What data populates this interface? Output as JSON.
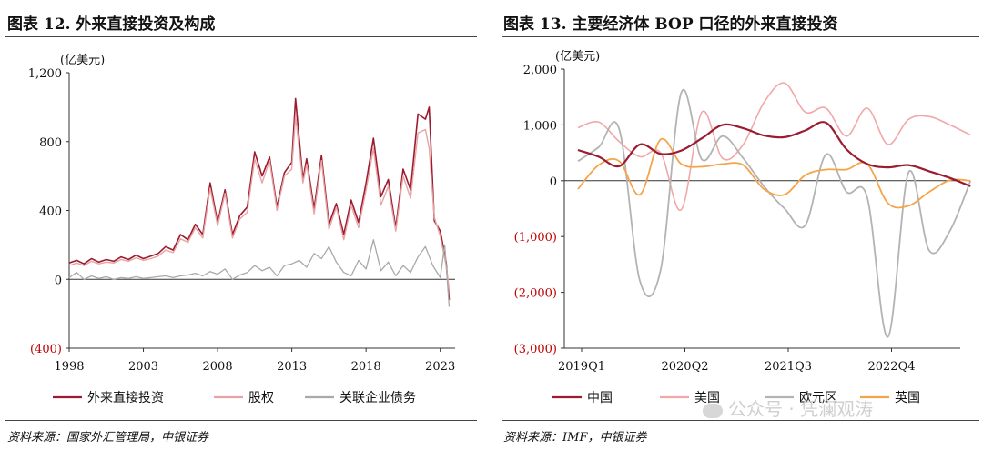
{
  "chart_data": [
    {
      "type": "line",
      "title": "图表 12. 外来直接投资及构成",
      "ylabel": "(亿美元)",
      "xlabel": "",
      "ylim": [
        -400,
        1200
      ],
      "yticks": [
        -400,
        0,
        400,
        800,
        1200
      ],
      "ytick_labels": [
        "(400)",
        "0",
        "400",
        "800",
        "1,200"
      ],
      "xlim": [
        1998,
        2024
      ],
      "xticks": [
        1998,
        2003,
        2008,
        2013,
        2018,
        2023
      ],
      "xtick_labels": [
        "1998",
        "2003",
        "2008",
        "2013",
        "2018",
        "2023"
      ],
      "legend_position": "bottom",
      "source": "资料来源：国家外汇管理局，中银证券",
      "series": [
        {
          "name": "外来直接投资",
          "color": "#9b1b30",
          "width": 1.6,
          "points": [
            [
              1998,
              95
            ],
            [
              1998.5,
              110
            ],
            [
              1999,
              90
            ],
            [
              1999.5,
              120
            ],
            [
              2000,
              100
            ],
            [
              2000.5,
              115
            ],
            [
              2001,
              105
            ],
            [
              2001.5,
              130
            ],
            [
              2002,
              115
            ],
            [
              2002.5,
              140
            ],
            [
              2003,
              120
            ],
            [
              2003.5,
              135
            ],
            [
              2004,
              150
            ],
            [
              2004.5,
              190
            ],
            [
              2005,
              170
            ],
            [
              2005.5,
              260
            ],
            [
              2006,
              230
            ],
            [
              2006.5,
              320
            ],
            [
              2007,
              260
            ],
            [
              2007.5,
              560
            ],
            [
              2008,
              330
            ],
            [
              2008.5,
              520
            ],
            [
              2009,
              260
            ],
            [
              2009.5,
              370
            ],
            [
              2010,
              420
            ],
            [
              2010.5,
              740
            ],
            [
              2011,
              600
            ],
            [
              2011.5,
              710
            ],
            [
              2012,
              420
            ],
            [
              2012.5,
              620
            ],
            [
              2013,
              680
            ],
            [
              2013.25,
              1050
            ],
            [
              2013.75,
              580
            ],
            [
              2014,
              700
            ],
            [
              2014.5,
              410
            ],
            [
              2015,
              720
            ],
            [
              2015.5,
              320
            ],
            [
              2016,
              440
            ],
            [
              2016.5,
              260
            ],
            [
              2017,
              460
            ],
            [
              2017.5,
              330
            ],
            [
              2018,
              560
            ],
            [
              2018.5,
              820
            ],
            [
              2019,
              480
            ],
            [
              2019.5,
              580
            ],
            [
              2020,
              300
            ],
            [
              2020.5,
              640
            ],
            [
              2021,
              520
            ],
            [
              2021.5,
              960
            ],
            [
              2022,
              930
            ],
            [
              2022.25,
              1000
            ],
            [
              2022.6,
              340
            ],
            [
              2023,
              280
            ],
            [
              2023.4,
              100
            ],
            [
              2023.6,
              -120
            ]
          ]
        },
        {
          "name": "股权",
          "color": "#e8a3a3",
          "width": 1.4,
          "points": [
            [
              1998,
              80
            ],
            [
              1998.5,
              95
            ],
            [
              1999,
              80
            ],
            [
              1999.5,
              105
            ],
            [
              2000,
              90
            ],
            [
              2000.5,
              100
            ],
            [
              2001,
              95
            ],
            [
              2001.5,
              115
            ],
            [
              2002,
              105
            ],
            [
              2002.5,
              125
            ],
            [
              2003,
              110
            ],
            [
              2003.5,
              120
            ],
            [
              2004,
              135
            ],
            [
              2004.5,
              170
            ],
            [
              2005,
              155
            ],
            [
              2005.5,
              235
            ],
            [
              2006,
              215
            ],
            [
              2006.5,
              300
            ],
            [
              2007,
              240
            ],
            [
              2007.5,
              530
            ],
            [
              2008,
              310
            ],
            [
              2008.5,
              500
            ],
            [
              2009,
              240
            ],
            [
              2009.5,
              350
            ],
            [
              2010,
              390
            ],
            [
              2010.5,
              700
            ],
            [
              2011,
              560
            ],
            [
              2011.5,
              690
            ],
            [
              2012,
              400
            ],
            [
              2012.5,
              600
            ],
            [
              2013,
              640
            ],
            [
              2013.25,
              950
            ],
            [
              2013.75,
              560
            ],
            [
              2014,
              670
            ],
            [
              2014.5,
              380
            ],
            [
              2015,
              690
            ],
            [
              2015.5,
              290
            ],
            [
              2016,
              420
            ],
            [
              2016.5,
              230
            ],
            [
              2017,
              430
            ],
            [
              2017.5,
              300
            ],
            [
              2018,
              520
            ],
            [
              2018.5,
              760
            ],
            [
              2019,
              430
            ],
            [
              2019.5,
              540
            ],
            [
              2020,
              280
            ],
            [
              2020.5,
              600
            ],
            [
              2021,
              470
            ],
            [
              2021.5,
              850
            ],
            [
              2022,
              870
            ],
            [
              2022.25,
              760
            ],
            [
              2022.6,
              360
            ],
            [
              2023,
              250
            ],
            [
              2023.4,
              80
            ],
            [
              2023.6,
              -60
            ]
          ]
        },
        {
          "name": "关联企业债务",
          "color": "#a9a9a9",
          "width": 1.3,
          "points": [
            [
              1998,
              10
            ],
            [
              1998.5,
              40
            ],
            [
              1999,
              0
            ],
            [
              1999.5,
              20
            ],
            [
              2000,
              5
            ],
            [
              2000.5,
              15
            ],
            [
              2001,
              0
            ],
            [
              2001.5,
              10
            ],
            [
              2002,
              5
            ],
            [
              2002.5,
              15
            ],
            [
              2003,
              5
            ],
            [
              2003.5,
              10
            ],
            [
              2004,
              15
            ],
            [
              2004.5,
              20
            ],
            [
              2005,
              10
            ],
            [
              2005.5,
              20
            ],
            [
              2006,
              25
            ],
            [
              2006.5,
              35
            ],
            [
              2007,
              20
            ],
            [
              2007.5,
              45
            ],
            [
              2008,
              30
            ],
            [
              2008.5,
              60
            ],
            [
              2009,
              0
            ],
            [
              2009.5,
              25
            ],
            [
              2010,
              40
            ],
            [
              2010.5,
              80
            ],
            [
              2011,
              50
            ],
            [
              2011.5,
              70
            ],
            [
              2012,
              20
            ],
            [
              2012.5,
              80
            ],
            [
              2013,
              90
            ],
            [
              2013.5,
              110
            ],
            [
              2014,
              70
            ],
            [
              2014.5,
              150
            ],
            [
              2015,
              120
            ],
            [
              2015.5,
              190
            ],
            [
              2016,
              100
            ],
            [
              2016.5,
              40
            ],
            [
              2017,
              20
            ],
            [
              2017.5,
              110
            ],
            [
              2018,
              60
            ],
            [
              2018.5,
              230
            ],
            [
              2019,
              50
            ],
            [
              2019.5,
              100
            ],
            [
              2020,
              20
            ],
            [
              2020.5,
              80
            ],
            [
              2021,
              40
            ],
            [
              2021.5,
              130
            ],
            [
              2022,
              190
            ],
            [
              2022.5,
              80
            ],
            [
              2023,
              10
            ],
            [
              2023.3,
              200
            ],
            [
              2023.6,
              -160
            ]
          ]
        }
      ]
    },
    {
      "type": "line",
      "title": "图表 13. 主要经济体 BOP 口径的外来直接投资",
      "ylabel": "(亿美元)",
      "xlabel": "",
      "ylim": [
        -3000,
        2000
      ],
      "yticks": [
        -3000,
        -2000,
        -1000,
        0,
        1000,
        2000
      ],
      "ytick_labels": [
        "(3,000)",
        "(2,000)",
        "(1,000)",
        "0",
        "1,000",
        "2,000"
      ],
      "categories": [
        "2019Q1",
        "2019Q2",
        "2019Q3",
        "2019Q4",
        "2020Q1",
        "2020Q2",
        "2020Q3",
        "2020Q4",
        "2021Q1",
        "2021Q2",
        "2021Q3",
        "2021Q4",
        "2022Q1",
        "2022Q2",
        "2022Q3",
        "2022Q4",
        "2023Q1",
        "2023Q2",
        "2023Q3",
        "2023Q4"
      ],
      "xtick_labels": [
        "2019Q1",
        "2020Q2",
        "2021Q3",
        "2022Q4"
      ],
      "xtick_indices": [
        0,
        5,
        10,
        15
      ],
      "legend_position": "bottom",
      "source": "资料来源：IMF，中银证券",
      "series": [
        {
          "name": "中国",
          "color": "#9b1b30",
          "width": 2.2,
          "values": [
            550,
            430,
            260,
            650,
            480,
            540,
            760,
            1000,
            940,
            810,
            780,
            900,
            1040,
            560,
            300,
            240,
            280,
            170,
            50,
            -100
          ]
        },
        {
          "name": "美国",
          "color": "#f0a8a8",
          "width": 1.6,
          "values": [
            950,
            1050,
            700,
            430,
            500,
            -520,
            1230,
            400,
            650,
            1400,
            1750,
            1230,
            1300,
            800,
            1300,
            650,
            1100,
            1150,
            1000,
            820
          ]
        },
        {
          "name": "欧元区",
          "color": "#b3b3b3",
          "width": 1.8,
          "values": [
            350,
            600,
            920,
            -1800,
            -1600,
            1580,
            380,
            800,
            400,
            -100,
            -500,
            -800,
            470,
            -200,
            -300,
            -2800,
            150,
            -1250,
            -900,
            0
          ]
        },
        {
          "name": "英国",
          "color": "#f4a54a",
          "width": 1.8,
          "values": [
            -150,
            280,
            350,
            -250,
            740,
            300,
            250,
            300,
            280,
            -150,
            -250,
            100,
            200,
            200,
            300,
            -400,
            -450,
            -200,
            10,
            0
          ]
        }
      ]
    }
  ],
  "watermark": "公众号 · 凭澜观涛"
}
